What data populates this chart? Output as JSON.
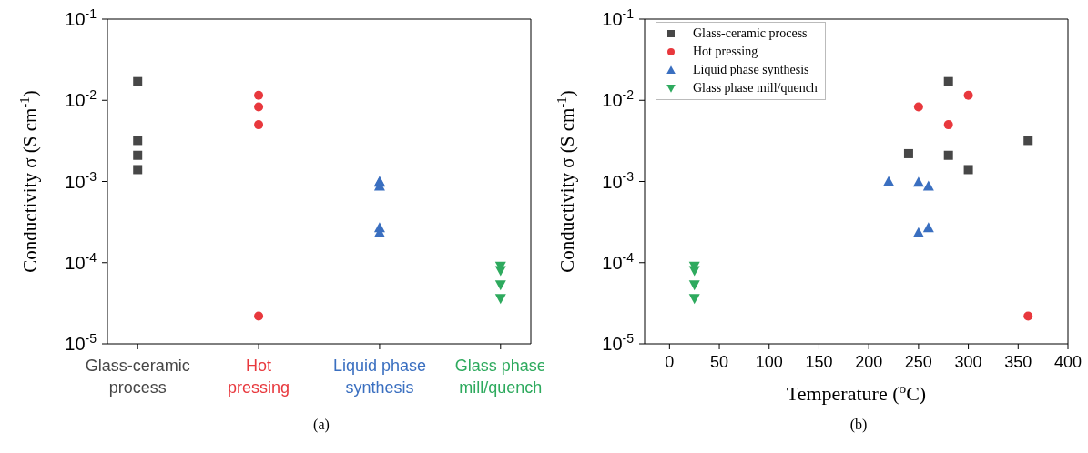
{
  "chart_data": [
    {
      "type": "scatter",
      "ylabel": "Conductivity σ (S cm$^{-1}$)",
      "categories": [
        "Glass-ceramic\nprocess",
        "Hot\npressing",
        "Liquid phase\nsynthesis",
        "Glass phase\nmill/quench"
      ],
      "log": "y",
      "ylim": [
        1e-05,
        0.1
      ],
      "yticks": [
        {
          "value": 1e-05,
          "label": "10$^{-5}$"
        },
        {
          "value": 0.0001,
          "label": "10$^{-4}$"
        },
        {
          "value": 0.001,
          "label": "10$^{-3}$"
        },
        {
          "value": 0.01,
          "label": "10$^{-2}$"
        },
        {
          "value": 0.1,
          "label": "10$^{-1}$"
        }
      ],
      "grid": false,
      "legend": false,
      "annotations": [
        "(a)"
      ],
      "series": [
        {
          "color": "#474747",
          "marker": "square",
          "x": [
            "Glass-ceramic\nprocess",
            "Glass-ceramic\nprocess",
            "Glass-ceramic\nprocess",
            "Glass-ceramic\nprocess",
            "Glass-ceramic\nprocess"
          ],
          "values": [
            0.017,
            0.0032,
            null,
            0.0021,
            0.0014
          ]
        },
        {
          "color": "#e8383d",
          "marker": "circle",
          "x": [
            "Hot\npressing",
            "Hot\npressing",
            "Hot\npressing",
            "Hot\npressing"
          ],
          "values": [
            0.0115,
            0.0083,
            0.005,
            2.2e-05
          ]
        },
        {
          "color": "#3a6fc0",
          "marker": "triangle",
          "x": [
            "Liquid phase\nsynthesis",
            "Liquid phase\nsynthesis",
            "Liquid phase\nsynthesis",
            "Liquid phase\nsynthesis",
            "Liquid phase\nsynthesis"
          ],
          "values": [
            0.001,
            0.00098,
            0.00088,
            0.00027,
            0.000235
          ]
        },
        {
          "color": "#2eaa5e",
          "marker": "triangle-down",
          "x": [
            "Glass phase\nmill/quench",
            "Glass phase\nmill/quench",
            "Glass phase\nmill/quench",
            "Glass phase\nmill/quench"
          ],
          "values": [
            9e-05,
            8e-05,
            5.3e-05,
            3.6e-05
          ]
        }
      ]
    },
    {
      "type": "scatter",
      "xlabel": "Temperature ($^{o}$C)",
      "ylabel": "Conductivity σ (S cm$^{-1}$)",
      "log": "y",
      "xlim": [
        -25,
        400
      ],
      "xticks": [
        0,
        50,
        100,
        150,
        200,
        250,
        300,
        350,
        400
      ],
      "ylim": [
        1e-05,
        0.1
      ],
      "yticks": [
        {
          "value": 1e-05,
          "label": "10$^{-5}$"
        },
        {
          "value": 0.0001,
          "label": "10$^{-4}$"
        },
        {
          "value": 0.001,
          "label": "10$^{-3}$"
        },
        {
          "value": 0.01,
          "label": "10$^{-2}$"
        },
        {
          "value": 0.1,
          "label": "10$^{-1}$"
        }
      ],
      "grid": false,
      "legend": "top left",
      "annotations": [
        "(b)"
      ],
      "series": [
        {
          "name": "Glass-ceramic process",
          "color": "#474747",
          "marker": "square",
          "x": [
            240,
            280,
            280,
            300,
            360
          ],
          "values": [
            0.0022,
            0.017,
            0.0021,
            0.0014,
            0.0032
          ]
        },
        {
          "name": "Hot pressing",
          "color": "#e8383d",
          "marker": "circle",
          "x": [
            250,
            280,
            300,
            360
          ],
          "values": [
            0.0083,
            0.005,
            0.0115,
            2.2e-05
          ]
        },
        {
          "name": "Liquid phase synthesis",
          "color": "#3a6fc0",
          "marker": "triangle",
          "x": [
            220,
            250,
            260,
            250,
            260
          ],
          "values": [
            0.001,
            0.00098,
            0.00088,
            0.000235,
            0.00027
          ]
        },
        {
          "name": "Glass phase mill/quench",
          "color": "#2eaa5e",
          "marker": "triangle-down",
          "x": [
            25,
            25,
            25,
            25
          ],
          "values": [
            9e-05,
            8e-05,
            5.3e-05,
            3.6e-05
          ]
        }
      ]
    }
  ]
}
